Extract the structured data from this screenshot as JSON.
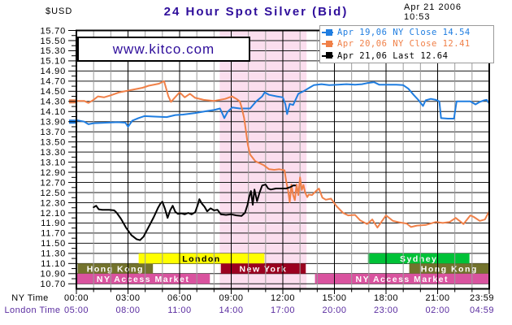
{
  "header": {
    "currency_label": "$USD",
    "title": "24 Hour Spot Silver (Bid)",
    "date": "Apr 21 2006",
    "time": "10:53"
  },
  "watermark": {
    "text": "www.kitco.com"
  },
  "legend": {
    "items": [
      {
        "label": "Apr 19,06 NY Close 14.54",
        "color": "#1f7de0"
      },
      {
        "label": "Apr 20,06 NY Close 12.41",
        "color": "#f08048"
      },
      {
        "label": "Apr 21,06 Last 12.64",
        "color": "#000000"
      }
    ]
  },
  "chart_data": {
    "type": "line",
    "title": "24 Hour Spot Silver (Bid)",
    "ylabel": "$USD",
    "grid": true,
    "legend_position": "top-right",
    "y_axis": {
      "min": 10.7,
      "max": 15.7,
      "step": 0.2,
      "minor_step": 0.1
    },
    "x_axis": {
      "unit": "hours",
      "range": [
        0,
        24
      ],
      "rows": [
        {
          "label": "NY Time",
          "color": "#000000"
        },
        {
          "label": "London Time",
          "color": "#5a2ca0"
        }
      ],
      "ticks": [
        {
          "h": 0,
          "ny": "00:00",
          "london": "05:00"
        },
        {
          "h": 3,
          "ny": "03:00",
          "london": "08:00"
        },
        {
          "h": 6,
          "ny": "06:00",
          "london": "11:00"
        },
        {
          "h": 9,
          "ny": "09:00",
          "london": "14:00"
        },
        {
          "h": 12,
          "ny": "12:00",
          "london": "17:00"
        },
        {
          "h": 15,
          "ny": "15:00",
          "london": "20:00"
        },
        {
          "h": 18,
          "ny": "18:00",
          "london": "23:00"
        },
        {
          "h": 21,
          "ny": "21:00",
          "london": "02:00"
        },
        {
          "h": 23.983,
          "ny": "23:59",
          "london": "04:59"
        }
      ]
    },
    "session_band": {
      "name": "comex-ny-floor-session",
      "start_h": 8.33,
      "end_h": 13.38,
      "color": "#fbdeee"
    },
    "market_sessions": [
      {
        "name": "hong-kong-1",
        "label": "Hong Kong",
        "row": "mid",
        "start_h": 0.07,
        "end_h": 4.45,
        "color": "#73732d",
        "text_color": "#ffffff"
      },
      {
        "name": "london",
        "label": "London",
        "row": "top",
        "start_h": 3.62,
        "end_h": 10.93,
        "color": "#ffff00",
        "text_color": "#000000"
      },
      {
        "name": "new-york",
        "label": "New York",
        "row": "mid",
        "start_h": 8.4,
        "end_h": 13.33,
        "color": "#9b0020",
        "text_color": "#ffffff"
      },
      {
        "name": "sydney",
        "label": "Sydney",
        "row": "top",
        "start_h": 16.95,
        "end_h": 22.85,
        "color": "#00c238",
        "text_color": "#ffffff"
      },
      {
        "name": "hong-kong-2",
        "label": "Hong Kong",
        "row": "mid",
        "start_h": 19.35,
        "end_h": 24,
        "color": "#73732d",
        "text_color": "#ffffff"
      },
      {
        "name": "ny-access-1",
        "label": "NY Access Market",
        "row": "bot",
        "start_h": 0,
        "end_h": 7.76,
        "color": "#d9539f",
        "text_color": "#ffffff"
      },
      {
        "name": "ny-access-2",
        "label": "NY Access Market",
        "row": "bot",
        "start_h": 13.87,
        "end_h": 24,
        "color": "#d9539f",
        "text_color": "#ffffff"
      }
    ],
    "start_markers": [
      {
        "value": 14.3,
        "color": "#f08048"
      },
      {
        "value": 13.9,
        "color": "#1f7de0"
      }
    ],
    "series": [
      {
        "name": "Apr 19,06",
        "close_label": "NY Close",
        "close": 14.54,
        "color": "#1f7de0",
        "points": [
          [
            0,
            13.93
          ],
          [
            0.45,
            13.9
          ],
          [
            0.7,
            13.85
          ],
          [
            1.0,
            13.87
          ],
          [
            1.7,
            13.88
          ],
          [
            2.4,
            13.89
          ],
          [
            2.85,
            13.88
          ],
          [
            3.0,
            13.8
          ],
          [
            3.25,
            13.92
          ],
          [
            3.6,
            13.97
          ],
          [
            3.95,
            14.01
          ],
          [
            4.55,
            14.0
          ],
          [
            5.25,
            13.99
          ],
          [
            5.75,
            14.03
          ],
          [
            6.2,
            14.04
          ],
          [
            6.9,
            14.07
          ],
          [
            7.6,
            14.11
          ],
          [
            8.0,
            14.13
          ],
          [
            8.35,
            14.16
          ],
          [
            8.5,
            14.05
          ],
          [
            8.6,
            13.97
          ],
          [
            8.8,
            14.1
          ],
          [
            9.05,
            14.18
          ],
          [
            9.5,
            14.16
          ],
          [
            10.1,
            14.16
          ],
          [
            10.45,
            14.3
          ],
          [
            10.8,
            14.4
          ],
          [
            10.95,
            14.48
          ],
          [
            11.2,
            14.43
          ],
          [
            11.65,
            14.4
          ],
          [
            12.0,
            14.38
          ],
          [
            12.15,
            14.24
          ],
          [
            12.25,
            14.05
          ],
          [
            12.4,
            14.25
          ],
          [
            12.6,
            14.23
          ],
          [
            12.9,
            14.45
          ],
          [
            13.2,
            14.5
          ],
          [
            13.4,
            14.54
          ],
          [
            13.8,
            14.62
          ],
          [
            14.25,
            14.64
          ],
          [
            14.7,
            14.62
          ],
          [
            15.2,
            14.63
          ],
          [
            15.7,
            14.64
          ],
          [
            16.2,
            14.63
          ],
          [
            16.6,
            14.64
          ],
          [
            16.9,
            14.66
          ],
          [
            17.3,
            14.68
          ],
          [
            17.6,
            14.63
          ],
          [
            18.1,
            14.63
          ],
          [
            18.6,
            14.63
          ],
          [
            19.0,
            14.62
          ],
          [
            19.3,
            14.55
          ],
          [
            19.6,
            14.43
          ],
          [
            19.9,
            14.32
          ],
          [
            20.15,
            14.21
          ],
          [
            20.3,
            14.32
          ],
          [
            20.6,
            14.35
          ],
          [
            20.9,
            14.33
          ],
          [
            21.1,
            14.3
          ],
          [
            21.2,
            13.97
          ],
          [
            21.6,
            13.96
          ],
          [
            21.95,
            13.96
          ],
          [
            22.1,
            14.3
          ],
          [
            22.5,
            14.3
          ],
          [
            22.9,
            14.3
          ],
          [
            23.2,
            14.24
          ],
          [
            23.45,
            14.29
          ],
          [
            23.7,
            14.32
          ],
          [
            23.85,
            14.33
          ],
          [
            24,
            14.26
          ]
        ]
      },
      {
        "name": "Apr 20,06",
        "close_label": "NY Close",
        "close": 12.41,
        "color": "#f08048",
        "points": [
          [
            0,
            14.31
          ],
          [
            0.45,
            14.31
          ],
          [
            0.7,
            14.27
          ],
          [
            1.0,
            14.33
          ],
          [
            1.25,
            14.4
          ],
          [
            1.6,
            14.38
          ],
          [
            2.0,
            14.42
          ],
          [
            2.5,
            14.48
          ],
          [
            3.1,
            14.52
          ],
          [
            3.85,
            14.57
          ],
          [
            4.2,
            14.61
          ],
          [
            4.8,
            14.65
          ],
          [
            5.1,
            14.7
          ],
          [
            5.35,
            14.4
          ],
          [
            5.5,
            14.29
          ],
          [
            6.0,
            14.48
          ],
          [
            6.3,
            14.38
          ],
          [
            6.6,
            14.45
          ],
          [
            6.9,
            14.37
          ],
          [
            7.4,
            14.33
          ],
          [
            8.0,
            14.31
          ],
          [
            8.65,
            14.35
          ],
          [
            9.05,
            14.4
          ],
          [
            9.3,
            14.35
          ],
          [
            9.5,
            14.3
          ],
          [
            9.6,
            14.19
          ],
          [
            9.75,
            13.97
          ],
          [
            9.97,
            13.44
          ],
          [
            10.1,
            13.25
          ],
          [
            10.4,
            13.12
          ],
          [
            10.65,
            13.08
          ],
          [
            10.9,
            13.04
          ],
          [
            11.2,
            12.96
          ],
          [
            11.5,
            12.95
          ],
          [
            11.8,
            12.96
          ],
          [
            12.1,
            12.94
          ],
          [
            12.2,
            12.72
          ],
          [
            12.3,
            12.55
          ],
          [
            12.4,
            12.31
          ],
          [
            12.5,
            12.66
          ],
          [
            12.6,
            12.45
          ],
          [
            12.7,
            12.35
          ],
          [
            12.8,
            12.66
          ],
          [
            12.9,
            12.45
          ],
          [
            13.0,
            12.8
          ],
          [
            13.1,
            12.55
          ],
          [
            13.2,
            12.65
          ],
          [
            13.3,
            12.5
          ],
          [
            13.42,
            12.41
          ],
          [
            13.5,
            12.46
          ],
          [
            13.7,
            12.45
          ],
          [
            13.9,
            12.52
          ],
          [
            14.1,
            12.58
          ],
          [
            14.3,
            12.4
          ],
          [
            14.5,
            12.36
          ],
          [
            14.8,
            12.38
          ],
          [
            15.1,
            12.24
          ],
          [
            15.5,
            12.1
          ],
          [
            15.8,
            12.05
          ],
          [
            16.2,
            12.06
          ],
          [
            16.5,
            11.95
          ],
          [
            16.9,
            11.88
          ],
          [
            17.2,
            11.97
          ],
          [
            17.5,
            11.81
          ],
          [
            18.0,
            12.05
          ],
          [
            18.4,
            11.94
          ],
          [
            18.8,
            11.91
          ],
          [
            19.2,
            11.89
          ],
          [
            19.45,
            11.82
          ],
          [
            19.8,
            11.85
          ],
          [
            20.3,
            11.86
          ],
          [
            20.9,
            11.92
          ],
          [
            21.3,
            11.9
          ],
          [
            21.7,
            11.92
          ],
          [
            22.05,
            12.0
          ],
          [
            22.5,
            11.88
          ],
          [
            22.9,
            12.05
          ],
          [
            23.1,
            12.02
          ],
          [
            23.45,
            11.94
          ],
          [
            23.75,
            11.97
          ],
          [
            23.95,
            12.1
          ],
          [
            24,
            12.13
          ]
        ]
      },
      {
        "name": "Apr 21,06",
        "close_label": "Last",
        "close": 12.64,
        "color": "#000000",
        "points": [
          [
            1.0,
            12.21
          ],
          [
            1.15,
            12.24
          ],
          [
            1.3,
            12.17
          ],
          [
            1.5,
            12.16
          ],
          [
            1.9,
            12.16
          ],
          [
            2.2,
            12.15
          ],
          [
            2.35,
            12.1
          ],
          [
            2.6,
            11.98
          ],
          [
            2.9,
            11.8
          ],
          [
            3.2,
            11.66
          ],
          [
            3.5,
            11.58
          ],
          [
            3.7,
            11.56
          ],
          [
            3.9,
            11.63
          ],
          [
            4.2,
            11.82
          ],
          [
            4.5,
            12.02
          ],
          [
            4.75,
            12.2
          ],
          [
            4.9,
            12.29
          ],
          [
            5.0,
            12.32
          ],
          [
            5.15,
            12.18
          ],
          [
            5.3,
            12.0
          ],
          [
            5.45,
            12.15
          ],
          [
            5.6,
            12.24
          ],
          [
            5.75,
            12.12
          ],
          [
            5.9,
            12.08
          ],
          [
            6.1,
            12.09
          ],
          [
            6.3,
            12.07
          ],
          [
            6.5,
            12.1
          ],
          [
            6.7,
            12.07
          ],
          [
            6.9,
            12.11
          ],
          [
            7.05,
            12.25
          ],
          [
            7.15,
            12.37
          ],
          [
            7.3,
            12.28
          ],
          [
            7.45,
            12.22
          ],
          [
            7.6,
            12.13
          ],
          [
            7.8,
            12.19
          ],
          [
            8.0,
            12.15
          ],
          [
            8.2,
            12.16
          ],
          [
            8.4,
            12.07
          ],
          [
            8.7,
            12.06
          ],
          [
            9.0,
            12.07
          ],
          [
            9.3,
            12.05
          ],
          [
            9.6,
            12.04
          ],
          [
            9.8,
            12.1
          ],
          [
            9.95,
            12.26
          ],
          [
            10.05,
            12.42
          ],
          [
            10.15,
            12.53
          ],
          [
            10.25,
            12.26
          ],
          [
            10.35,
            12.56
          ],
          [
            10.5,
            12.33
          ],
          [
            10.65,
            12.5
          ],
          [
            10.8,
            12.64
          ],
          [
            11.0,
            12.66
          ],
          [
            11.15,
            12.58
          ],
          [
            11.3,
            12.56
          ],
          [
            11.6,
            12.58
          ],
          [
            11.9,
            12.58
          ],
          [
            12.2,
            12.58
          ],
          [
            12.45,
            12.61
          ],
          [
            12.6,
            12.64
          ],
          [
            12.72,
            12.64
          ]
        ]
      }
    ],
    "colors": {
      "grid_minor_vertical": "#9b9b9b",
      "grid_major_vertical": "#000000",
      "grid_horizontal": "#1a1a1a",
      "plot_border": "#000000"
    }
  }
}
